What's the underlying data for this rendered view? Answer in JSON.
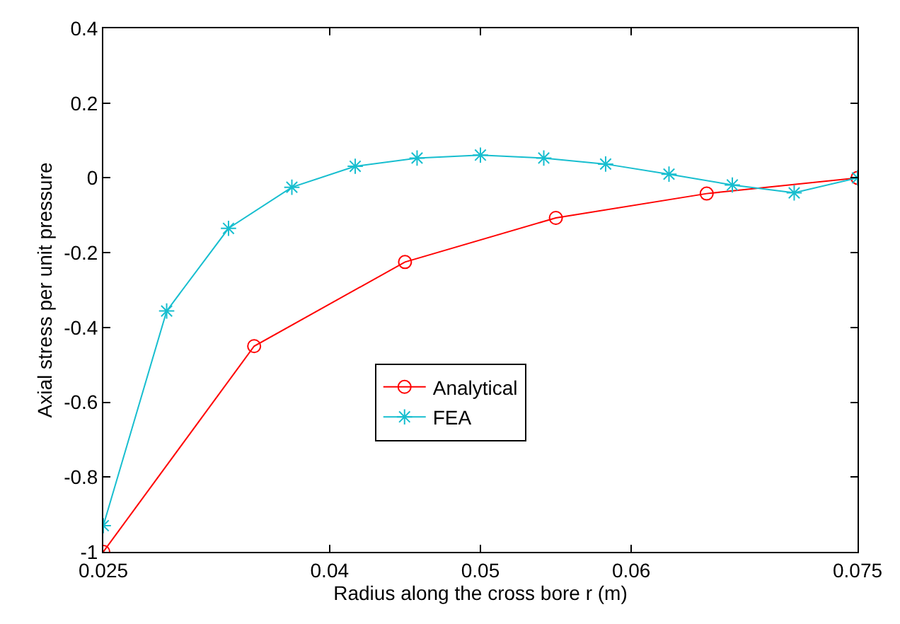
{
  "chart_data": {
    "type": "line",
    "xlabel": "Radius along the cross bore r (m)",
    "ylabel": "Axial stress per unit pressure",
    "series": [
      {
        "name": "Analytical",
        "color": "#ff0000",
        "marker": "circle",
        "x": [
          0.025,
          0.035,
          0.045,
          0.055,
          0.065,
          0.075
        ],
        "values": [
          -1.0,
          -0.45,
          -0.225,
          -0.107,
          -0.042,
          0.0
        ]
      },
      {
        "name": "FEA",
        "color": "#17becf",
        "marker": "cross",
        "x": [
          0.025,
          0.0292,
          0.0333,
          0.0375,
          0.0417,
          0.0458,
          0.05,
          0.0542,
          0.0583,
          0.0625,
          0.0667,
          0.0708,
          0.075
        ],
        "values": [
          -0.93,
          -0.356,
          -0.135,
          -0.025,
          0.031,
          0.053,
          0.061,
          0.053,
          0.037,
          0.01,
          -0.019,
          -0.04,
          0.0
        ]
      }
    ],
    "xlim": [
      0.025,
      0.075
    ],
    "xticks": [
      0.025,
      0.04,
      0.05,
      0.06,
      0.075
    ],
    "ylim": [
      -1,
      0.4
    ],
    "yticks": [
      {
        "value": -1,
        "label": "-1"
      },
      -0.8,
      -0.6,
      -0.4,
      -0.2,
      0,
      0.2,
      0.4
    ],
    "legend": "center",
    "line_style": "solid"
  }
}
